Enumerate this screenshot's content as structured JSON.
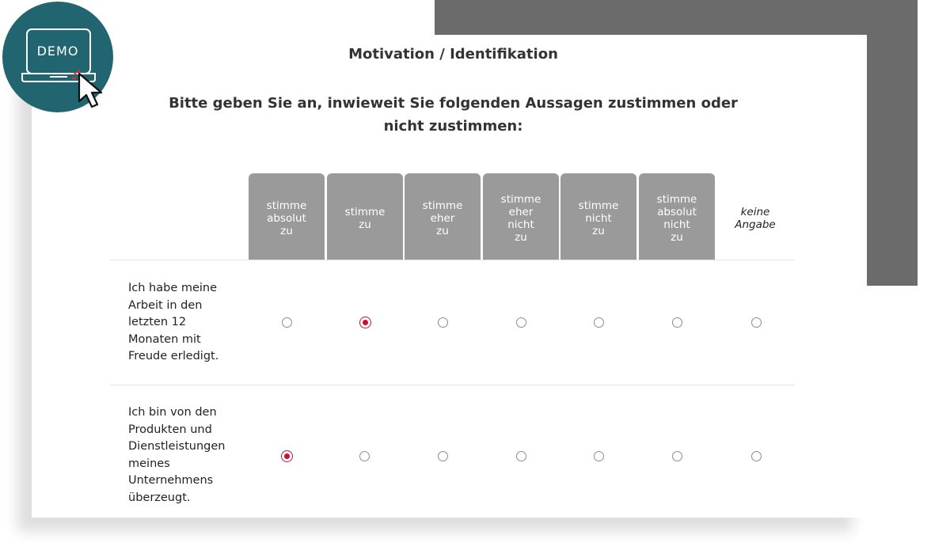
{
  "badge": {
    "label": "DEMO"
  },
  "survey": {
    "section_title": "Motivation / Identifikation",
    "question": "Bitte geben Sie an, inwieweit Sie folgenden Aussagen zustimmen oder nicht zustimmen:",
    "scale": [
      "stimme\nabsolut\nzu",
      "stimme\nzu",
      "stimme\neher\nzu",
      "stimme\neher\nnicht\nzu",
      "stimme\nnicht\nzu",
      "stimme\nabsolut\nnicht\nzu",
      "keine\nAngabe"
    ],
    "items": [
      {
        "text": "Ich habe meine Arbeit in den letzten 12 Monaten mit Freude erledigt.",
        "selected": "stimme zu"
      },
      {
        "text": "Ich bin von den Produkten und Dienstleistungen meines Unternehmens überzeugt.",
        "selected": "stimme absolut zu"
      }
    ]
  },
  "colors": {
    "accent": "#c8102e",
    "header_bg": "#9a9a9a",
    "badge_bg": "#216570",
    "panel_dark": "#6b6b6b"
  }
}
